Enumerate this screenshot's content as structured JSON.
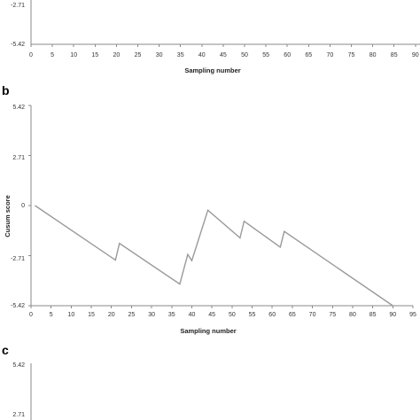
{
  "chart_data": [
    {
      "panel": "",
      "type": "line",
      "xlabel": "Sampling number",
      "ylabel": "",
      "y_ticks": [
        "-2.71",
        "-5.42"
      ],
      "x_ticks": [
        "0",
        "5",
        "10",
        "15",
        "20",
        "25",
        "30",
        "35",
        "40",
        "45",
        "50",
        "55",
        "60",
        "65",
        "70",
        "75",
        "80",
        "85",
        "90"
      ],
      "series": []
    },
    {
      "panel": "b",
      "type": "line",
      "xlabel": "Sampling number",
      "ylabel": "Cusum score",
      "xlim": [
        0,
        95
      ],
      "ylim": [
        -5.42,
        5.42
      ],
      "y_ticks": [
        "5.42",
        "2.71",
        "0",
        "-2.71",
        "-5.42"
      ],
      "x_ticks": [
        "0",
        "5",
        "10",
        "15",
        "20",
        "25",
        "30",
        "35",
        "40",
        "45",
        "50",
        "55",
        "60",
        "65",
        "70",
        "75",
        "80",
        "85",
        "90",
        "95"
      ],
      "grid": false,
      "series": [
        {
          "x": [
            1,
            21,
            22,
            37,
            39,
            40,
            44,
            52,
            53,
            62,
            63,
            90
          ],
          "y": [
            0,
            -2.95,
            -2.05,
            -4.25,
            -2.65,
            -2.98,
            -0.25,
            -1.75,
            -0.85,
            -2.25,
            -1.4,
            -5.42
          ]
        }
      ]
    },
    {
      "panel": "c",
      "type": "line",
      "xlabel": "",
      "ylabel": "",
      "y_ticks": [
        "5.42",
        "2.71"
      ],
      "x_ticks": [],
      "series": []
    }
  ]
}
